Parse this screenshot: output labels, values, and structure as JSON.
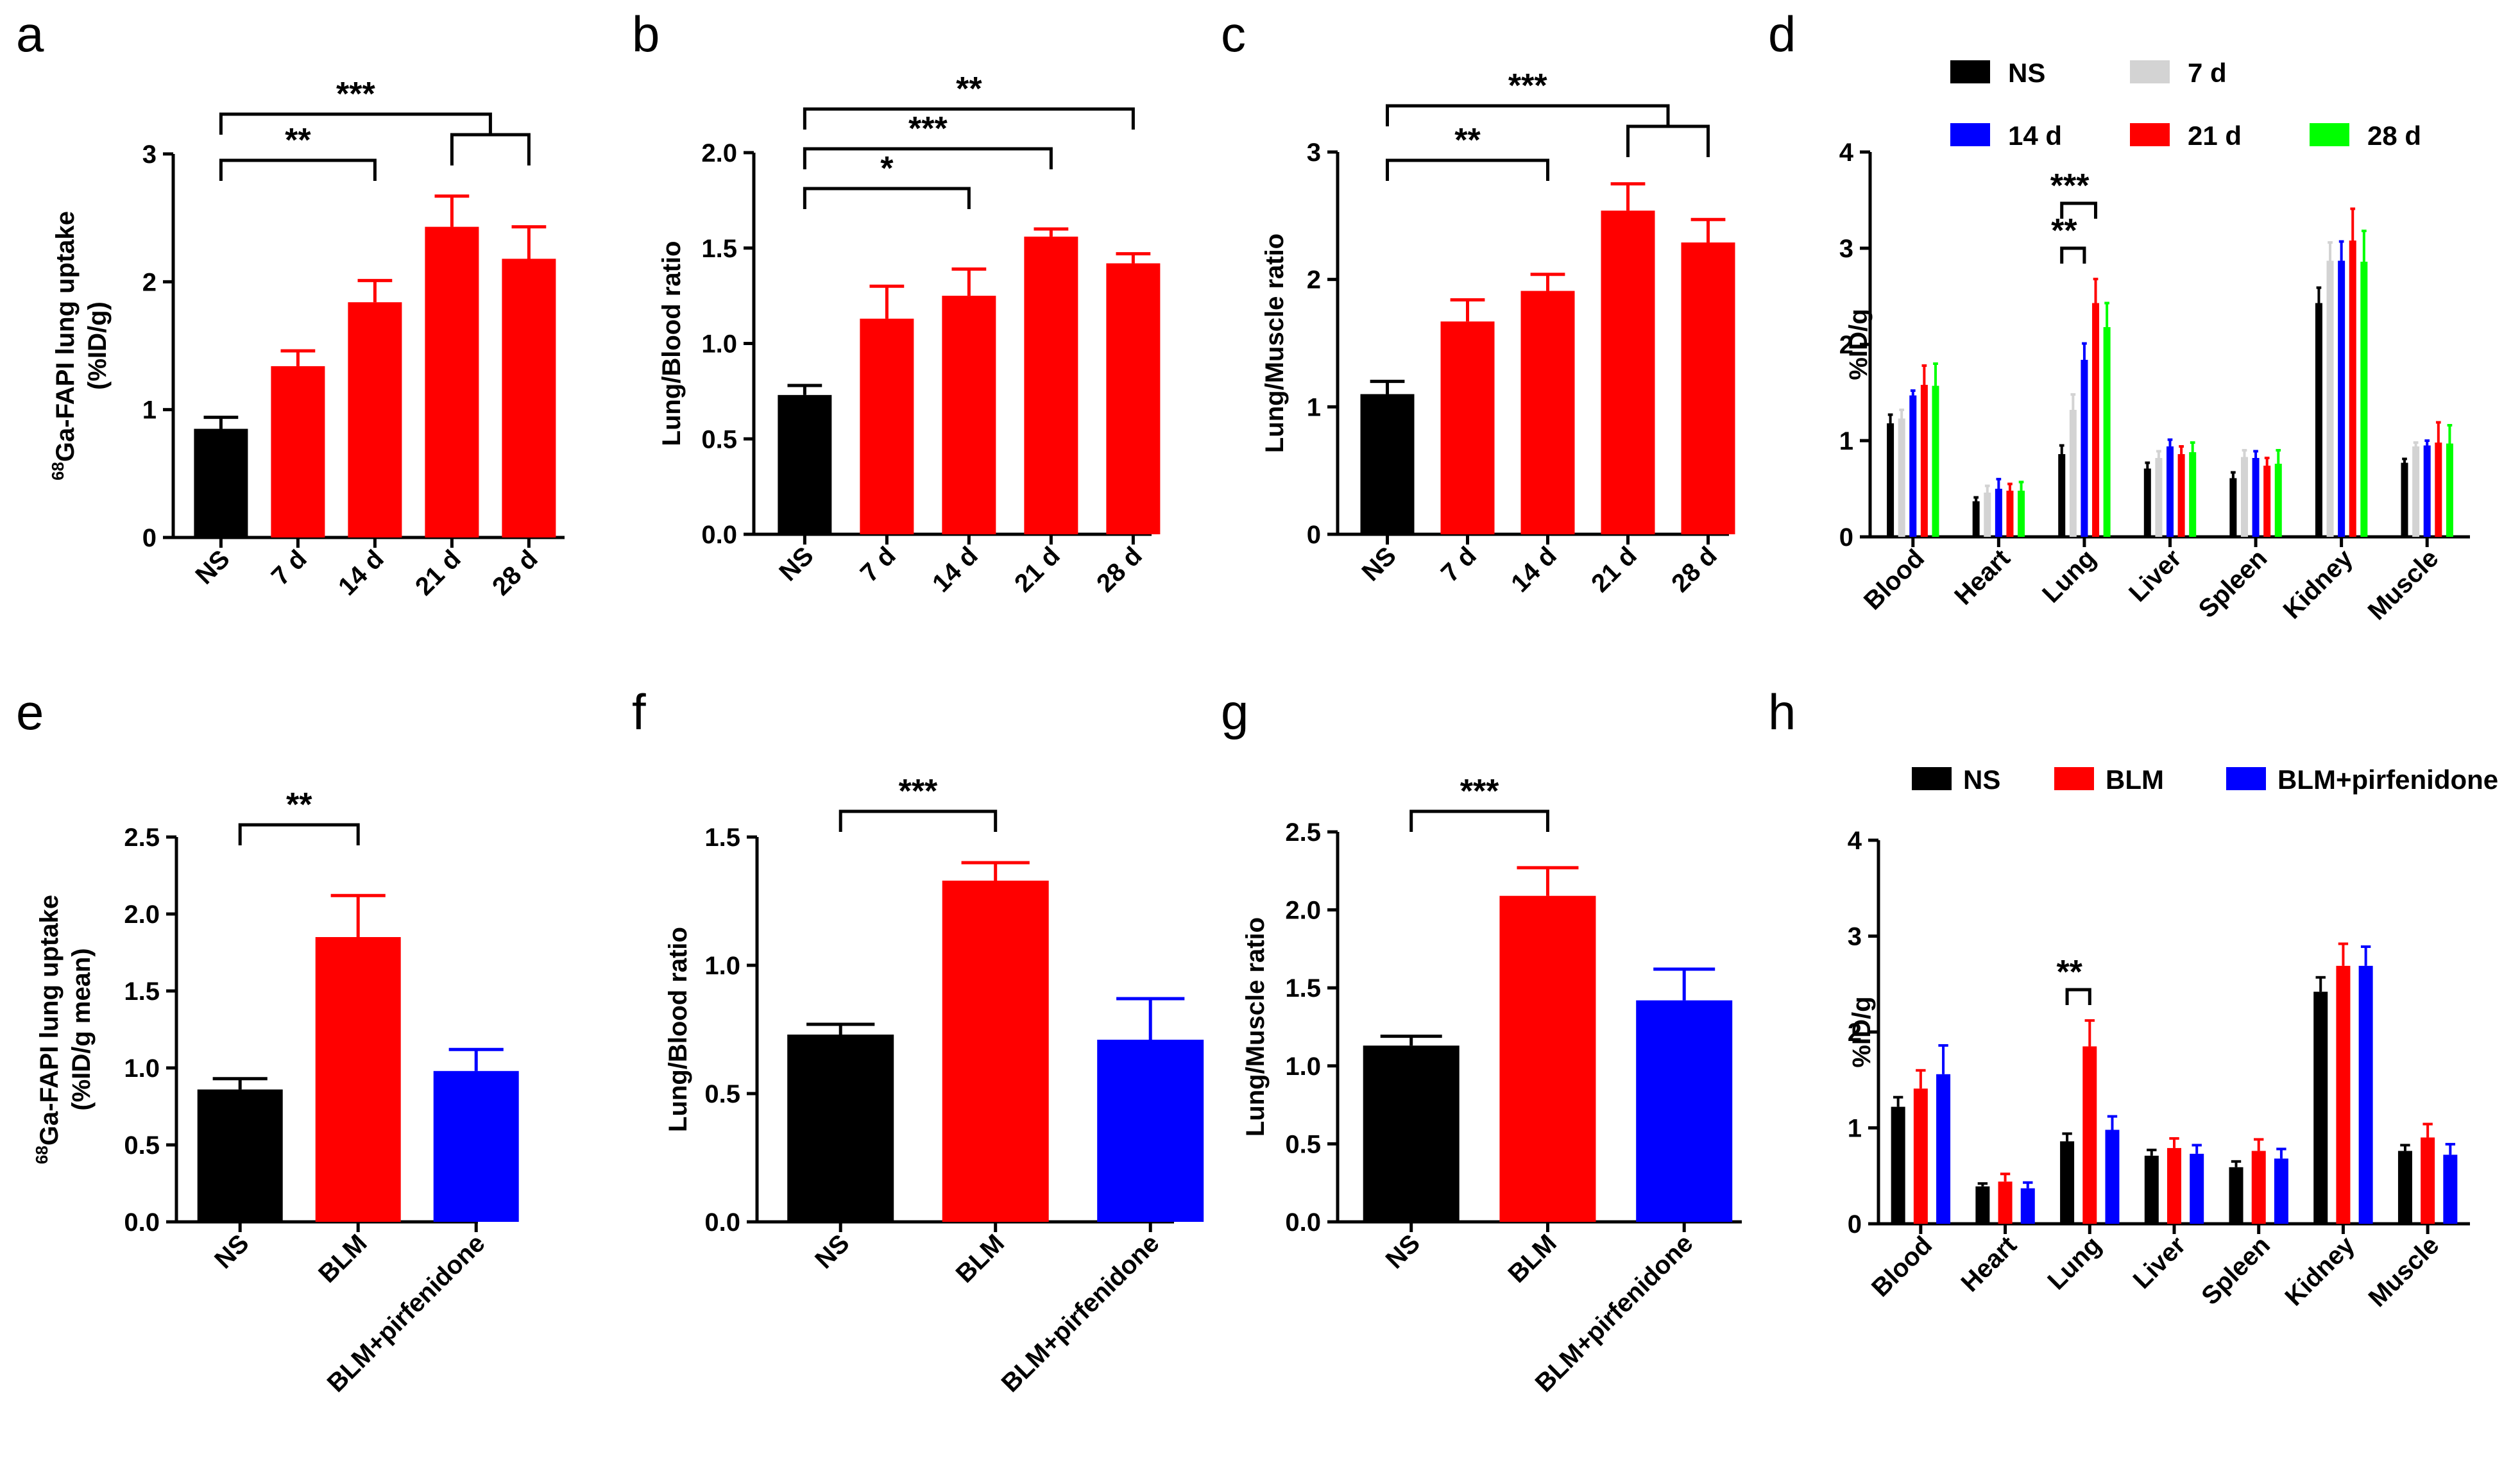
{
  "panel_letters": [
    "a",
    "b",
    "c",
    "d",
    "e",
    "f",
    "g",
    "h"
  ],
  "colors": {
    "NS": "#000000",
    "7 d": "#d3d3d3",
    "14 d": "#0000ff",
    "21 d": "#ff0000",
    "28 d": "#00ff00",
    "BLM": "#ff0000",
    "BLM+pirfenidone": "#0000ff",
    "red": "#ff0000"
  },
  "chart_data": [
    {
      "panel": "a",
      "type": "bar",
      "categories": [
        "NS",
        "7 d",
        "14 d",
        "21 d",
        "28 d"
      ],
      "values": [
        0.85,
        1.34,
        1.84,
        2.43,
        2.18
      ],
      "errors": [
        0.09,
        0.12,
        0.17,
        0.24,
        0.25
      ],
      "bar_colors": [
        "NS",
        "red",
        "red",
        "red",
        "red"
      ],
      "ylabel": "68Ga-FAPI lung uptake (%ID/g)",
      "ylabel_lines": [
        "Ga-FAPI lung uptake",
        "(%ID/g)"
      ],
      "ylabel_sup": "68",
      "ylim": [
        0,
        3
      ],
      "yticks": [
        0,
        1,
        2,
        3
      ],
      "significance": [
        {
          "label": "***",
          "from": 0,
          "to": [
            3,
            4
          ],
          "level": 0
        },
        {
          "label": "**",
          "from": 0,
          "to": 2,
          "level": 1
        }
      ]
    },
    {
      "panel": "b",
      "type": "bar",
      "categories": [
        "NS",
        "7 d",
        "14 d",
        "21 d",
        "28 d"
      ],
      "values": [
        0.73,
        1.13,
        1.25,
        1.56,
        1.42
      ],
      "errors": [
        0.05,
        0.17,
        0.14,
        0.04,
        0.05
      ],
      "bar_colors": [
        "NS",
        "red",
        "red",
        "red",
        "red"
      ],
      "ylabel": "Lung/Blood ratio",
      "ylim": [
        0,
        2.0
      ],
      "yticks": [
        0.0,
        0.5,
        1.0,
        1.5,
        2.0
      ],
      "significance": [
        {
          "label": "**",
          "from": 0,
          "to": 4,
          "level": 0
        },
        {
          "label": "***",
          "from": 0,
          "to": 3,
          "level": 1
        },
        {
          "label": "*",
          "from": 0,
          "to": 2,
          "level": 2
        }
      ]
    },
    {
      "panel": "c",
      "type": "bar",
      "categories": [
        "NS",
        "7 d",
        "14 d",
        "21 d",
        "28 d"
      ],
      "values": [
        1.1,
        1.67,
        1.91,
        2.54,
        2.29
      ],
      "errors": [
        0.1,
        0.17,
        0.13,
        0.21,
        0.18
      ],
      "bar_colors": [
        "NS",
        "red",
        "red",
        "red",
        "red"
      ],
      "ylabel": "Lung/Muscle ratio",
      "ylim": [
        0,
        3
      ],
      "yticks": [
        0,
        1,
        2,
        3
      ],
      "significance": [
        {
          "label": "***",
          "from": 0,
          "to": [
            3,
            4
          ],
          "level": 0
        },
        {
          "label": "**",
          "from": 0,
          "to": 2,
          "level": 1
        }
      ]
    },
    {
      "panel": "d",
      "type": "bar",
      "categories": [
        "Blood",
        "Heart",
        "Lung",
        "Liver",
        "Spleen",
        "Kidney",
        "Muscle"
      ],
      "series": [
        {
          "name": "NS",
          "values": [
            1.18,
            0.37,
            0.86,
            0.71,
            0.61,
            2.43,
            0.77
          ],
          "errors": [
            0.09,
            0.04,
            0.09,
            0.06,
            0.06,
            0.16,
            0.04
          ]
        },
        {
          "name": "7 d",
          "values": [
            1.23,
            0.46,
            1.32,
            0.82,
            0.83,
            2.87,
            0.94
          ],
          "errors": [
            0.09,
            0.07,
            0.16,
            0.07,
            0.07,
            0.19,
            0.04
          ]
        },
        {
          "name": "14 d",
          "values": [
            1.47,
            0.5,
            1.84,
            0.94,
            0.82,
            2.87,
            0.95
          ],
          "errors": [
            0.05,
            0.1,
            0.17,
            0.07,
            0.07,
            0.2,
            0.05
          ]
        },
        {
          "name": "21 d",
          "values": [
            1.58,
            0.48,
            2.43,
            0.86,
            0.74,
            3.08,
            0.98
          ],
          "errors": [
            0.2,
            0.07,
            0.25,
            0.08,
            0.08,
            0.33,
            0.21
          ]
        },
        {
          "name": "28 d",
          "values": [
            1.57,
            0.48,
            2.18,
            0.88,
            0.76,
            2.86,
            0.97
          ],
          "errors": [
            0.23,
            0.09,
            0.25,
            0.1,
            0.14,
            0.32,
            0.19
          ]
        }
      ],
      "ylabel": "%ID/g",
      "ylim": [
        0,
        4
      ],
      "yticks": [
        0,
        1,
        2,
        3,
        4
      ],
      "legend": [
        "NS",
        "7 d",
        "14 d",
        "21 d",
        "28 d"
      ],
      "significance": [
        {
          "label": "***",
          "category": 2,
          "from": 0,
          "to": 3,
          "level": 0
        },
        {
          "label": "**",
          "category": 2,
          "from": 0,
          "to": 2,
          "level": 1
        }
      ]
    },
    {
      "panel": "e",
      "type": "bar",
      "categories": [
        "NS",
        "BLM",
        "BLM+pirfenidone"
      ],
      "values": [
        0.86,
        1.85,
        0.98
      ],
      "errors": [
        0.07,
        0.27,
        0.14
      ],
      "bar_colors": [
        "NS",
        "BLM",
        "BLM+pirfenidone"
      ],
      "ylabel": "68Ga-FAPI lung uptake (%ID/g mean)",
      "ylabel_lines": [
        "Ga-FAPI lung uptake",
        "(%ID/g mean)"
      ],
      "ylabel_sup": "68",
      "ylim": [
        0,
        2.5
      ],
      "yticks": [
        0.0,
        0.5,
        1.0,
        1.5,
        2.0,
        2.5
      ],
      "significance": [
        {
          "label": "**",
          "from": 0,
          "to": 1,
          "level": 0
        }
      ]
    },
    {
      "panel": "f",
      "type": "bar",
      "categories": [
        "NS",
        "BLM",
        "BLM+pirfenidone"
      ],
      "values": [
        0.73,
        1.33,
        0.71
      ],
      "errors": [
        0.04,
        0.07,
        0.16
      ],
      "bar_colors": [
        "NS",
        "BLM",
        "BLM+pirfenidone"
      ],
      "ylabel": "Lung/Blood ratio",
      "ylim": [
        0,
        1.5
      ],
      "yticks": [
        0.0,
        0.5,
        1.0,
        1.5
      ],
      "significance": [
        {
          "label": "***",
          "from": 0,
          "to": 1,
          "level": 0
        }
      ]
    },
    {
      "panel": "g",
      "type": "bar",
      "categories": [
        "NS",
        "BLM",
        "BLM+pirfenidone"
      ],
      "values": [
        1.13,
        2.09,
        1.42
      ],
      "errors": [
        0.06,
        0.18,
        0.2
      ],
      "bar_colors": [
        "NS",
        "BLM",
        "BLM+pirfenidone"
      ],
      "ylabel": "Lung/Muscle ratio",
      "ylim": [
        0,
        2.5
      ],
      "yticks": [
        0.0,
        0.5,
        1.0,
        1.5,
        2.0,
        2.5
      ],
      "significance": [
        {
          "label": "***",
          "from": 0,
          "to": 1,
          "level": 0
        }
      ]
    },
    {
      "panel": "h",
      "type": "bar",
      "categories": [
        "Blood",
        "Heart",
        "Lung",
        "Liver",
        "Spleen",
        "Kidney",
        "Muscle"
      ],
      "series": [
        {
          "name": "NS",
          "values": [
            1.22,
            0.39,
            0.86,
            0.71,
            0.59,
            2.42,
            0.76
          ],
          "errors": [
            0.1,
            0.03,
            0.08,
            0.06,
            0.06,
            0.15,
            0.06
          ]
        },
        {
          "name": "BLM",
          "values": [
            1.41,
            0.44,
            1.85,
            0.79,
            0.76,
            2.69,
            0.9
          ],
          "errors": [
            0.19,
            0.08,
            0.27,
            0.1,
            0.12,
            0.23,
            0.14
          ]
        },
        {
          "name": "BLM+pirfenidone",
          "values": [
            1.56,
            0.37,
            0.98,
            0.73,
            0.68,
            2.69,
            0.72
          ],
          "errors": [
            0.3,
            0.06,
            0.14,
            0.09,
            0.1,
            0.2,
            0.11
          ]
        }
      ],
      "ylabel": "%ID/g",
      "ylim": [
        0,
        4
      ],
      "yticks": [
        0,
        1,
        2,
        3,
        4
      ],
      "legend": [
        "NS",
        "BLM",
        "BLM+pirfenidone"
      ],
      "significance": [
        {
          "label": "**",
          "category": 2,
          "from": 0,
          "to": 1,
          "level": 0
        }
      ]
    }
  ]
}
